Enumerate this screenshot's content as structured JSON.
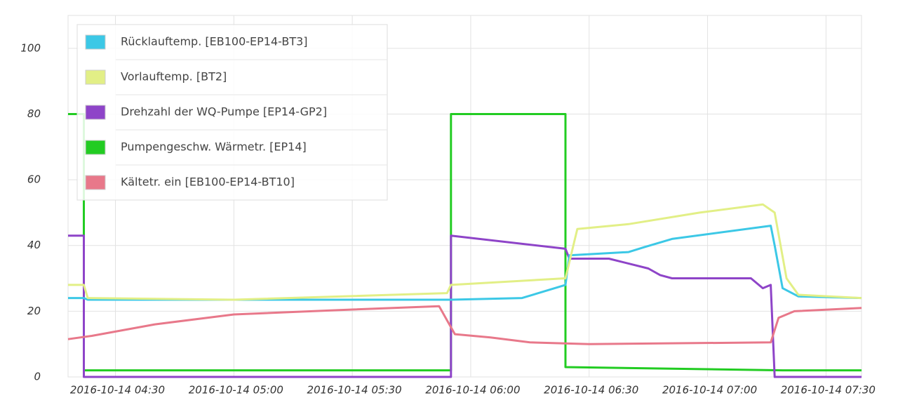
{
  "chart_data": {
    "type": "line",
    "xlim": [
      "2016-10-14 04:18",
      "2016-10-14 07:39"
    ],
    "xticks": [
      "2016-10-14 04:30",
      "2016-10-14 05:00",
      "2016-10-14 05:30",
      "2016-10-14 06:00",
      "2016-10-14 06:30",
      "2016-10-14 07:00",
      "2016-10-14 07:30"
    ],
    "ylim": [
      0,
      110
    ],
    "yticks": [
      0,
      20,
      40,
      60,
      80,
      100
    ],
    "grid": true,
    "legend": "top-left",
    "series": [
      {
        "name": "Rücklauftemp. [EB100-EP14-BT3]",
        "color": "#3cc8e6",
        "x": [
          "2016-10-14 04:18",
          "2016-10-14 04:22",
          "2016-10-14 04:23",
          "2016-10-14 05:55",
          "2016-10-14 06:13",
          "2016-10-14 06:24",
          "2016-10-14 06:25",
          "2016-10-14 06:40",
          "2016-10-14 06:44",
          "2016-10-14 06:51",
          "2016-10-14 07:16",
          "2016-10-14 07:17",
          "2016-10-14 07:19",
          "2016-10-14 07:23",
          "2016-10-14 07:39"
        ],
        "values": [
          24,
          24,
          23.5,
          23.5,
          24,
          28,
          37,
          38,
          39.5,
          42,
          46,
          40,
          27,
          24.5,
          24
        ]
      },
      {
        "name": "Vorlauftemp. [BT2]",
        "color": "#e2ef86",
        "x": [
          "2016-10-14 04:18",
          "2016-10-14 04:22",
          "2016-10-14 04:23",
          "2016-10-14 05:00",
          "2016-10-14 05:54",
          "2016-10-14 05:55",
          "2016-10-14 06:24",
          "2016-10-14 06:27",
          "2016-10-14 06:40",
          "2016-10-14 06:58",
          "2016-10-14 07:14",
          "2016-10-14 07:17",
          "2016-10-14 07:20",
          "2016-10-14 07:23",
          "2016-10-14 07:39"
        ],
        "values": [
          28,
          28,
          24,
          23.5,
          25.5,
          28,
          30,
          45,
          46.5,
          50,
          52.5,
          50,
          30,
          25,
          24
        ]
      },
      {
        "name": "Drehzahl der WQ-Pumpe [EP14-GP2]",
        "color": "#8e44c8",
        "x": [
          "2016-10-14 04:18",
          "2016-10-14 04:22",
          "2016-10-14 04:22",
          "2016-10-14 05:55",
          "2016-10-14 05:55",
          "2016-10-14 06:24",
          "2016-10-14 06:25",
          "2016-10-14 06:35",
          "2016-10-14 06:45",
          "2016-10-14 06:48",
          "2016-10-14 06:51",
          "2016-10-14 07:11",
          "2016-10-14 07:14",
          "2016-10-14 07:16",
          "2016-10-14 07:17",
          "2016-10-14 07:39"
        ],
        "values": [
          43,
          43,
          0,
          0,
          43,
          39,
          36,
          36,
          33,
          31,
          30,
          30,
          27,
          28,
          0,
          0
        ]
      },
      {
        "name": "Pumpengeschw. Wärmetr. [EP14]",
        "color": "#22cc22",
        "x": [
          "2016-10-14 04:18",
          "2016-10-14 04:22",
          "2016-10-14 04:22",
          "2016-10-14 05:55",
          "2016-10-14 05:55",
          "2016-10-14 06:24",
          "2016-10-14 06:24",
          "2016-10-14 07:19",
          "2016-10-14 07:39"
        ],
        "values": [
          80,
          80,
          2,
          2,
          80,
          80,
          3,
          2,
          2
        ]
      },
      {
        "name": "Kältetr. ein [EB100-EP14-BT10]",
        "color": "#e8788a",
        "x": [
          "2016-10-14 04:18",
          "2016-10-14 04:24",
          "2016-10-14 04:40",
          "2016-10-14 05:00",
          "2016-10-14 05:30",
          "2016-10-14 05:52",
          "2016-10-14 05:56",
          "2016-10-14 06:05",
          "2016-10-14 06:15",
          "2016-10-14 06:30",
          "2016-10-14 07:16",
          "2016-10-14 07:18",
          "2016-10-14 07:22",
          "2016-10-14 07:39"
        ],
        "values": [
          11.5,
          12.5,
          16,
          19,
          20.5,
          21.5,
          13,
          12,
          10.5,
          10,
          10.5,
          18,
          20,
          21
        ]
      }
    ]
  }
}
